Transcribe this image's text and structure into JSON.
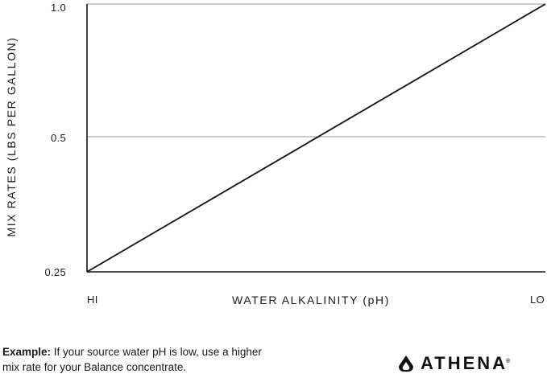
{
  "chart_data": {
    "type": "line",
    "xlabel": "WATER ALKALINITY (pH)",
    "ylabel": "MIX RATES (LBS PER GALLON)",
    "x_categories": [
      "HI",
      "LO"
    ],
    "y_ticks": [
      "0.25",
      "0.5",
      "1.0"
    ],
    "series": [
      {
        "x": [
          "HI",
          "LO"
        ],
        "values": [
          0.25,
          1.0
        ]
      }
    ],
    "gridlines_at": [
      "0.5",
      "1.0"
    ],
    "grid": true,
    "legend": "none"
  },
  "footer": {
    "example_label": "Example:",
    "example_text": " If your source water pH is low, use a higher mix rate for your Balance concentrate."
  },
  "brand": {
    "name": "ATHENA",
    "reg_mark": "®",
    "logo_icon": "flame-icon"
  },
  "colors": {
    "line": "#111111",
    "grid": "#9a9a9a",
    "axis": "#111111",
    "text": "#1a1a1a"
  }
}
